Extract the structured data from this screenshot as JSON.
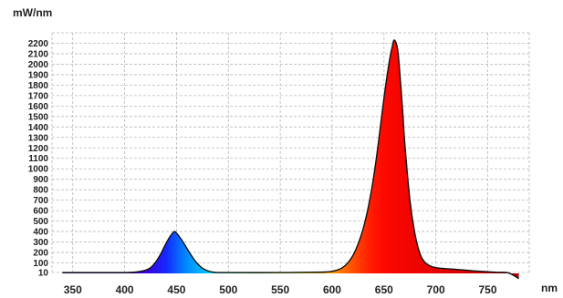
{
  "chart_data": {
    "type": "area",
    "ylabel": "mW/nm",
    "xlabel": "nm",
    "xlim": [
      330,
      790
    ],
    "ylim": [
      0,
      2300
    ],
    "xticks": [
      350,
      400,
      450,
      500,
      550,
      600,
      650,
      700,
      750
    ],
    "xtick_labels": [
      "350",
      "400",
      "450",
      "500",
      "550",
      "600",
      "650",
      "700",
      "750"
    ],
    "yticks": [
      10,
      100,
      200,
      300,
      400,
      500,
      600,
      700,
      800,
      900,
      1000,
      1100,
      1200,
      1300,
      1400,
      1500,
      1600,
      1700,
      1800,
      1900,
      2000,
      2100,
      2200
    ],
    "ytick_labels": [
      "10",
      "100",
      "200",
      "300",
      "400",
      "500",
      "600",
      "700",
      "800",
      "900",
      "1000",
      "1100",
      "1200",
      "1300",
      "1400",
      "1500",
      "1600",
      "1700",
      "1800",
      "1900",
      "2000",
      "2100",
      "2200"
    ],
    "grid": true,
    "x": [
      340,
      360,
      380,
      400,
      410,
      420,
      425,
      430,
      435,
      440,
      445,
      448,
      450,
      455,
      460,
      465,
      470,
      475,
      480,
      485,
      490,
      500,
      550,
      590,
      600,
      605,
      610,
      615,
      620,
      625,
      630,
      635,
      640,
      645,
      650,
      655,
      658,
      660,
      663,
      665,
      668,
      670,
      675,
      680,
      685,
      690,
      695,
      700,
      710,
      720,
      730,
      740,
      750,
      760,
      770,
      780
    ],
    "y": [
      8,
      8,
      8,
      8,
      12,
      30,
      55,
      110,
      190,
      290,
      370,
      400,
      385,
      320,
      240,
      160,
      95,
      50,
      25,
      12,
      8,
      8,
      8,
      12,
      20,
      32,
      55,
      100,
      170,
      280,
      430,
      640,
      920,
      1280,
      1680,
      2020,
      2170,
      2230,
      2150,
      1950,
      1550,
      1250,
      700,
      370,
      180,
      100,
      70,
      55,
      45,
      38,
      30,
      22,
      16,
      10,
      5,
      -50
    ]
  }
}
